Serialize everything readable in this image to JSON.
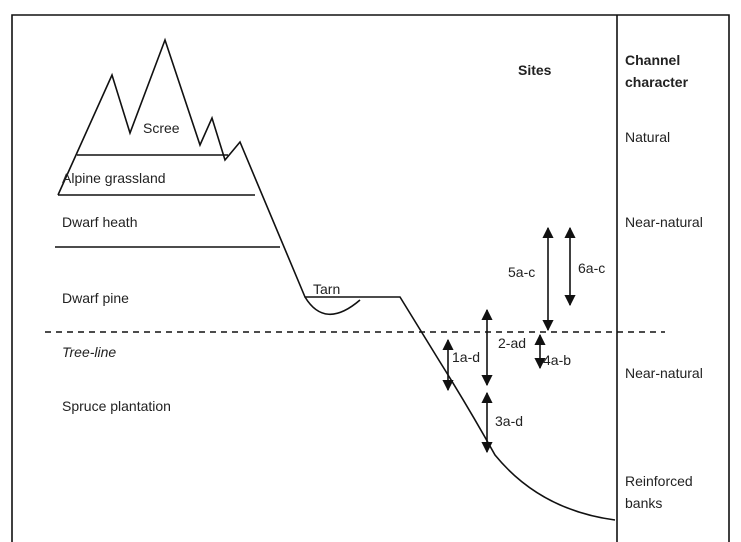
{
  "zones": [
    "Scree",
    "Alpine grassland",
    "Dwarf heath",
    "Dwarf pine",
    "Tree-line",
    "Spruce plantation"
  ],
  "tarn": "Tarn",
  "sites_heading": "Sites",
  "channel_heading": [
    "Channel",
    "character"
  ],
  "channel_character": [
    "Natural",
    "Near-natural",
    "Near-natural",
    [
      "Reinforced",
      "banks"
    ]
  ],
  "sites": [
    "5a-c",
    "6a-c",
    "2-ad",
    "1a-d",
    "4a-b",
    "3a-d"
  ]
}
